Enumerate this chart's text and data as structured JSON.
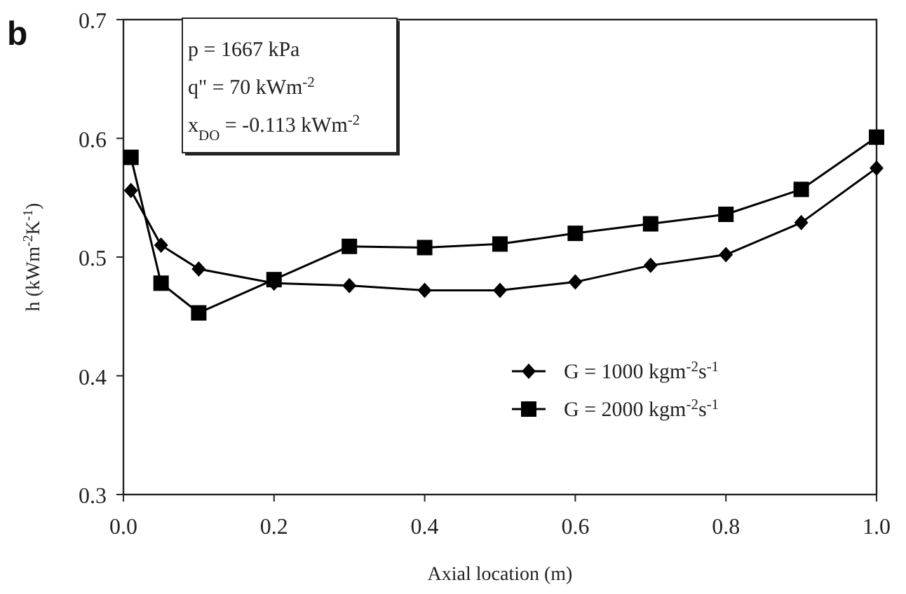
{
  "chart_data": {
    "type": "line",
    "xlabel": "Axial location (m)",
    "ylabel": "h (kWm$^{-2}$K$^{-1}$)",
    "x": [
      0.01,
      0.05,
      0.1,
      0.2,
      0.3,
      0.4,
      0.5,
      0.6,
      0.7,
      0.8,
      0.9,
      1.0
    ],
    "series": [
      {
        "name": "G = 1000 kgm$^{-2}$s$^{-1}$",
        "color": "#000000",
        "marker": "diamond",
        "values": [
          0.556,
          0.51,
          0.49,
          0.478,
          0.476,
          0.472,
          0.472,
          0.479,
          0.493,
          0.502,
          0.529,
          0.575
        ]
      },
      {
        "name": "G = 2000 kgm$^{-2}$s$^{-1}$",
        "color": "#000000",
        "marker": "square",
        "values": [
          0.584,
          0.478,
          0.453,
          0.481,
          0.509,
          0.508,
          0.511,
          0.52,
          0.528,
          0.536,
          0.557,
          0.601
        ]
      }
    ],
    "xlim": [
      0,
      1
    ],
    "xticks": [
      {
        "value": 0,
        "label": "0.0"
      },
      0.2,
      0.4,
      0.6,
      0.8,
      {
        "value": 1,
        "label": "1.0"
      }
    ],
    "ylim": [
      0.3,
      0.7
    ],
    "yticks": [
      0.3,
      0.4,
      0.5,
      0.6,
      0.7
    ],
    "legend": "right",
    "grid": false,
    "line_style": "solid",
    "annotations": [
      "b",
      "p = 1667 kPa",
      "q\" = 70 kWm$^{-2}$",
      "x$_{DO}$ = -0.113 kWm$^{-2}$"
    ]
  }
}
